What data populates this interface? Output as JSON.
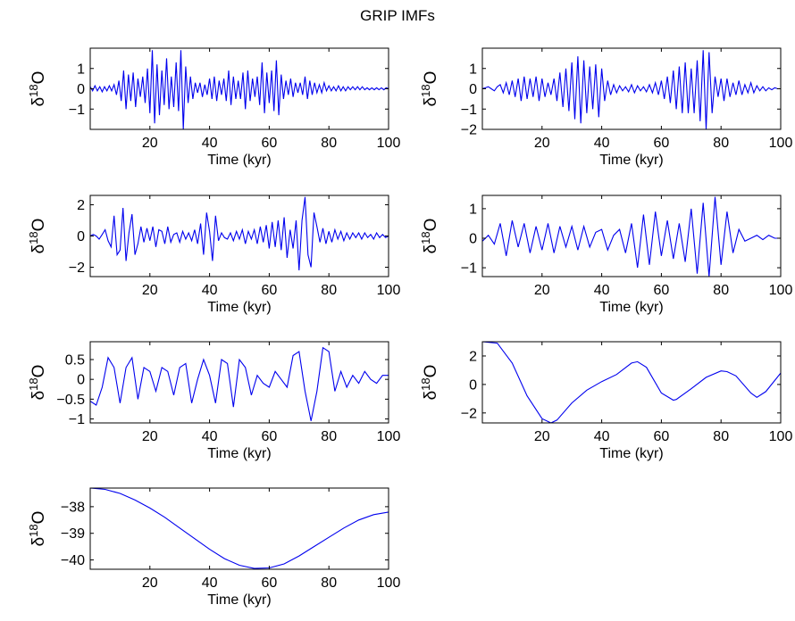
{
  "figure": {
    "title": "GRIP IMFs"
  },
  "style": {
    "line_color": "#0000ee",
    "axes_color": "#000000",
    "background": "#ffffff"
  },
  "chart_data": [
    {
      "type": "line",
      "xlabel": "Time (kyr)",
      "ylabel_base": "δ",
      "ylabel_sup": "18",
      "ylabel_tail": "O",
      "xlim": [
        0,
        100
      ],
      "ylim": [
        -2,
        2
      ],
      "xticks": [
        20,
        40,
        60,
        80,
        100
      ],
      "yticks": [
        -1,
        0,
        1
      ],
      "series": [
        {
          "x": [
            0,
            0.8,
            1.6,
            2.4,
            3.2,
            4,
            4.8,
            5.6,
            6.4,
            7.2,
            8,
            8.8,
            9.6,
            10.4,
            11.2,
            12,
            12.8,
            13.6,
            14.4,
            15.2,
            16,
            16.8,
            17.6,
            18.4,
            19.2,
            20,
            20.8,
            21.6,
            22.4,
            23.2,
            24,
            24.8,
            25.6,
            26.4,
            27.2,
            28,
            28.8,
            29.6,
            30.4,
            31.2,
            32,
            32.8,
            33.6,
            34.4,
            35.2,
            36,
            36.8,
            37.6,
            38.4,
            39.2,
            40,
            40.8,
            41.6,
            42.4,
            43.2,
            44,
            44.8,
            45.6,
            46.4,
            47.2,
            48,
            48.8,
            49.6,
            50.4,
            51.2,
            52,
            52.8,
            53.6,
            54.4,
            55.2,
            56,
            56.8,
            57.6,
            58.4,
            59.2,
            60,
            60.8,
            61.6,
            62.4,
            63.2,
            64,
            64.8,
            65.6,
            66.4,
            67.2,
            68,
            68.8,
            69.6,
            70.4,
            71.2,
            72,
            72.8,
            73.6,
            74.4,
            75.2,
            76,
            76.8,
            77.6,
            78.4,
            79.2,
            80,
            80.8,
            81.6,
            82.4,
            83.2,
            84,
            84.8,
            85.6,
            86.4,
            87.2,
            88,
            88.8,
            89.6,
            90.4,
            91.2,
            92,
            92.8,
            93.6,
            94.4,
            95.2,
            96,
            96.8,
            97.6,
            98.4,
            99.2,
            100
          ],
          "y": [
            0.1,
            -0.1,
            0.15,
            -0.1,
            0.1,
            -0.15,
            0.1,
            -0.1,
            0.15,
            -0.1,
            0.2,
            -0.3,
            0.4,
            -0.6,
            0.9,
            -1.0,
            0.7,
            -0.6,
            0.8,
            -0.9,
            0.5,
            -0.4,
            0.6,
            -0.7,
            1.0,
            -1.2,
            1.9,
            -1.7,
            1.2,
            -1.3,
            0.9,
            -0.8,
            1.5,
            -1.0,
            0.6,
            -0.9,
            1.3,
            -1.1,
            1.9,
            -2.0,
            1.1,
            -0.7,
            0.6,
            -0.5,
            0.3,
            -0.2,
            0.3,
            -0.4,
            0.2,
            -0.3,
            0.5,
            -0.5,
            0.6,
            -0.6,
            0.4,
            -0.3,
            0.5,
            -0.6,
            0.9,
            -0.8,
            0.6,
            -0.5,
            0.4,
            -0.5,
            0.8,
            -1.0,
            0.9,
            -0.6,
            0.5,
            -0.4,
            0.6,
            -0.8,
            1.3,
            -1.2,
            0.8,
            -0.7,
            0.9,
            -1.1,
            1.4,
            -1.3,
            0.7,
            -0.5,
            0.4,
            -0.3,
            0.5,
            -0.4,
            0.3,
            -0.2,
            0.3,
            -0.3,
            0.6,
            -0.5,
            0.4,
            -0.3,
            0.3,
            -0.2,
            0.2,
            -0.2,
            0.3,
            -0.1,
            0.15,
            -0.1,
            0.1,
            -0.1,
            0.15,
            -0.1,
            0.1,
            -0.1,
            0.1,
            -0.05,
            0.1,
            -0.05,
            0.1,
            -0.05,
            0.1,
            -0.05,
            0.05,
            -0.05,
            0.05,
            -0.05,
            0.05,
            -0.05,
            0.05,
            -0.05,
            0.05,
            0.0
          ]
        }
      ]
    },
    {
      "type": "line",
      "xlabel": "Time (kyr)",
      "ylabel_base": "δ",
      "ylabel_sup": "18",
      "ylabel_tail": "O",
      "xlim": [
        0,
        100
      ],
      "ylim": [
        -2,
        2
      ],
      "xticks": [
        20,
        40,
        60,
        80,
        100
      ],
      "yticks": [
        -2,
        -1,
        0,
        1
      ],
      "series": [
        {
          "x": [
            0,
            1,
            2,
            3,
            4,
            5,
            6,
            7,
            8,
            9,
            10,
            11,
            12,
            13,
            14,
            15,
            16,
            17,
            18,
            19,
            20,
            21,
            22,
            23,
            24,
            25,
            26,
            27,
            28,
            29,
            30,
            31,
            32,
            33,
            34,
            35,
            36,
            37,
            38,
            39,
            40,
            41,
            42,
            43,
            44,
            45,
            46,
            47,
            48,
            49,
            50,
            51,
            52,
            53,
            54,
            55,
            56,
            57,
            58,
            59,
            60,
            61,
            62,
            63,
            64,
            65,
            66,
            67,
            68,
            69,
            70,
            71,
            72,
            73,
            74,
            75,
            76,
            77,
            78,
            79,
            80,
            81,
            82,
            83,
            84,
            85,
            86,
            87,
            88,
            89,
            90,
            91,
            92,
            93,
            94,
            95,
            96,
            97,
            98,
            99,
            100
          ],
          "y": [
            0.0,
            0.05,
            0.1,
            0.0,
            -0.1,
            0.1,
            0.2,
            -0.2,
            0.3,
            -0.3,
            0.4,
            -0.4,
            0.5,
            -0.6,
            0.6,
            -0.5,
            0.5,
            -0.4,
            0.6,
            -0.6,
            0.5,
            -0.4,
            0.3,
            -0.3,
            0.5,
            -0.6,
            0.8,
            -0.9,
            1.0,
            -1.1,
            1.3,
            -1.5,
            1.6,
            -1.7,
            1.4,
            -1.2,
            1.1,
            -1.0,
            1.2,
            -1.4,
            1.0,
            -0.6,
            0.4,
            -0.3,
            0.2,
            -0.2,
            0.15,
            -0.1,
            0.1,
            -0.15,
            0.2,
            -0.2,
            0.15,
            -0.1,
            0.1,
            -0.15,
            0.2,
            -0.2,
            0.3,
            -0.3,
            0.4,
            -0.5,
            0.6,
            -0.7,
            0.9,
            -1.0,
            1.1,
            -1.2,
            1.3,
            -1.2,
            1.0,
            -1.2,
            1.4,
            -1.6,
            1.9,
            -2.0,
            1.8,
            -1.2,
            0.6,
            -0.4,
            0.5,
            -0.6,
            0.5,
            -0.4,
            0.3,
            -0.3,
            0.4,
            -0.3,
            0.2,
            -0.2,
            0.3,
            -0.2,
            0.15,
            -0.1,
            0.1,
            -0.1,
            0.05,
            -0.05,
            0.05,
            0.0,
            0.0
          ]
        }
      ]
    },
    {
      "type": "line",
      "xlabel": "Time (kyr)",
      "ylabel_base": "δ",
      "ylabel_sup": "18",
      "ylabel_tail": "O",
      "xlim": [
        0,
        100
      ],
      "ylim": [
        -2.6,
        2.6
      ],
      "xticks": [
        20,
        40,
        60,
        80,
        100
      ],
      "yticks": [
        -2,
        0,
        2
      ],
      "series": [
        {
          "x": [
            0,
            1,
            2,
            3,
            4,
            5,
            6,
            7,
            8,
            9,
            10,
            11,
            12,
            13,
            14,
            15,
            16,
            17,
            18,
            19,
            20,
            21,
            22,
            23,
            24,
            25,
            26,
            27,
            28,
            29,
            30,
            31,
            32,
            33,
            34,
            35,
            36,
            37,
            38,
            39,
            40,
            41,
            42,
            43,
            44,
            45,
            46,
            47,
            48,
            49,
            50,
            51,
            52,
            53,
            54,
            55,
            56,
            57,
            58,
            59,
            60,
            61,
            62,
            63,
            64,
            65,
            66,
            67,
            68,
            69,
            70,
            71,
            72,
            73,
            74,
            75,
            76,
            77,
            78,
            79,
            80,
            81,
            82,
            83,
            84,
            85,
            86,
            87,
            88,
            89,
            90,
            91,
            92,
            93,
            94,
            95,
            96,
            97,
            98,
            99,
            100
          ],
          "y": [
            0.0,
            0.1,
            0.0,
            -0.2,
            0.1,
            0.4,
            -0.3,
            -0.7,
            1.3,
            -1.2,
            -0.9,
            1.8,
            -1.6,
            0.2,
            1.4,
            -1.2,
            -0.5,
            0.6,
            -0.4,
            0.5,
            -0.3,
            0.6,
            -0.7,
            0.4,
            0.3,
            -0.5,
            0.6,
            -0.4,
            0.1,
            0.2,
            -0.4,
            0.3,
            -0.2,
            0.2,
            -0.3,
            0.4,
            -0.5,
            0.8,
            -1.2,
            1.5,
            0.3,
            -1.6,
            1.3,
            -0.3,
            0.2,
            -0.1,
            -0.2,
            0.2,
            -0.3,
            0.3,
            -0.2,
            0.4,
            -0.5,
            0.3,
            -0.2,
            0.4,
            -0.5,
            0.6,
            -0.4,
            0.7,
            -0.8,
            0.9,
            -0.7,
            1.0,
            -0.9,
            1.2,
            -1.4,
            0.4,
            -0.8,
            1.0,
            -2.2,
            1.0,
            2.5,
            -1.2,
            -2.0,
            1.5,
            0.6,
            -0.4,
            0.5,
            -0.5,
            0.3,
            -0.4,
            0.4,
            -0.2,
            0.3,
            -0.3,
            0.2,
            -0.2,
            0.2,
            -0.1,
            0.2,
            -0.2,
            0.2,
            -0.1,
            0.1,
            -0.2,
            0.2,
            -0.1,
            0.1,
            -0.1,
            0.0
          ]
        }
      ]
    },
    {
      "type": "line",
      "xlabel": "Time (kyr)",
      "ylabel_base": "δ",
      "ylabel_sup": "18",
      "ylabel_tail": "O",
      "xlim": [
        0,
        100
      ],
      "ylim": [
        -1.3,
        1.45
      ],
      "xticks": [
        20,
        40,
        60,
        80,
        100
      ],
      "yticks": [
        -1,
        0,
        1
      ],
      "series": [
        {
          "x": [
            0,
            2,
            4,
            6,
            8,
            10,
            12,
            14,
            16,
            18,
            20,
            22,
            24,
            26,
            28,
            30,
            32,
            34,
            36,
            38,
            40,
            42,
            44,
            46,
            48,
            50,
            52,
            54,
            56,
            58,
            60,
            62,
            64,
            66,
            68,
            70,
            72,
            74,
            76,
            78,
            80,
            82,
            84,
            86,
            88,
            90,
            92,
            94,
            96,
            98,
            100
          ],
          "y": [
            -0.1,
            0.1,
            -0.2,
            0.5,
            -0.6,
            0.6,
            -0.3,
            0.5,
            -0.5,
            0.4,
            -0.4,
            0.5,
            -0.5,
            0.4,
            -0.3,
            0.4,
            -0.4,
            0.4,
            -0.3,
            0.2,
            0.3,
            -0.4,
            0.1,
            0.3,
            -0.5,
            0.5,
            -1.0,
            0.8,
            -0.9,
            0.9,
            -0.6,
            0.6,
            -0.7,
            0.5,
            -0.8,
            1.0,
            -1.2,
            1.2,
            -1.3,
            1.4,
            -0.9,
            0.9,
            -0.5,
            0.3,
            -0.1,
            0.0,
            0.1,
            -0.05,
            0.1,
            0.0,
            0.0
          ]
        }
      ]
    },
    {
      "type": "line",
      "xlabel": "Time (kyr)",
      "ylabel_base": "δ",
      "ylabel_sup": "18",
      "ylabel_tail": "O",
      "xlim": [
        0,
        100
      ],
      "ylim": [
        -1.1,
        0.95
      ],
      "xticks": [
        20,
        40,
        60,
        80,
        100
      ],
      "yticks": [
        -1,
        -0.5,
        0,
        0.5
      ],
      "series": [
        {
          "x": [
            0,
            2,
            4,
            6,
            8,
            10,
            12,
            14,
            16,
            18,
            20,
            22,
            24,
            26,
            28,
            30,
            32,
            34,
            36,
            38,
            40,
            42,
            44,
            46,
            48,
            50,
            52,
            54,
            56,
            58,
            60,
            62,
            64,
            66,
            68,
            70,
            72,
            74,
            76,
            78,
            80,
            82,
            84,
            86,
            88,
            90,
            92,
            94,
            96,
            98,
            100
          ],
          "y": [
            -0.55,
            -0.65,
            -0.2,
            0.55,
            0.3,
            -0.6,
            0.3,
            0.55,
            -0.5,
            0.3,
            0.2,
            -0.3,
            0.3,
            0.2,
            -0.4,
            0.3,
            0.4,
            -0.6,
            0.0,
            0.5,
            0.1,
            -0.6,
            0.5,
            0.4,
            -0.7,
            0.5,
            0.3,
            -0.4,
            0.1,
            -0.1,
            -0.2,
            0.2,
            0.0,
            -0.2,
            0.6,
            0.7,
            -0.3,
            -1.05,
            -0.3,
            0.8,
            0.7,
            -0.3,
            0.2,
            -0.2,
            0.1,
            -0.1,
            0.2,
            0.0,
            -0.1,
            0.1,
            0.1
          ]
        }
      ]
    },
    {
      "type": "line",
      "xlabel": "Time (kyr)",
      "ylabel_base": "δ",
      "ylabel_sup": "18",
      "ylabel_tail": "O",
      "xlim": [
        0,
        100
      ],
      "ylim": [
        -2.7,
        3.0
      ],
      "xticks": [
        20,
        40,
        60,
        80,
        100
      ],
      "yticks": [
        -2,
        0,
        2
      ],
      "series": [
        {
          "x": [
            0,
            5,
            10,
            15,
            20,
            23,
            25,
            30,
            35,
            40,
            45,
            50,
            52,
            55,
            60,
            64,
            65,
            70,
            75,
            80,
            82,
            85,
            90,
            92,
            95,
            100
          ],
          "y": [
            3.0,
            2.9,
            1.5,
            -0.8,
            -2.4,
            -2.7,
            -2.5,
            -1.3,
            -0.4,
            0.2,
            0.7,
            1.5,
            1.6,
            1.2,
            -0.6,
            -1.1,
            -1.05,
            -0.3,
            0.5,
            0.95,
            0.9,
            0.6,
            -0.6,
            -0.9,
            -0.5,
            0.8
          ]
        }
      ]
    },
    {
      "type": "line",
      "xlabel": "Time (kyr)",
      "ylabel_base": "δ",
      "ylabel_sup": "18",
      "ylabel_tail": "O",
      "xlim": [
        0,
        100
      ],
      "ylim": [
        -40.35,
        -37.3
      ],
      "xticks": [
        20,
        40,
        60,
        80,
        100
      ],
      "yticks": [
        -40,
        -39,
        -38
      ],
      "series": [
        {
          "x": [
            0,
            5,
            10,
            15,
            20,
            25,
            30,
            35,
            40,
            45,
            50,
            55,
            60,
            65,
            70,
            75,
            80,
            85,
            90,
            95,
            100
          ],
          "y": [
            -37.3,
            -37.35,
            -37.5,
            -37.75,
            -38.05,
            -38.4,
            -38.8,
            -39.2,
            -39.6,
            -39.95,
            -40.2,
            -40.32,
            -40.3,
            -40.15,
            -39.85,
            -39.5,
            -39.15,
            -38.8,
            -38.5,
            -38.3,
            -38.2
          ]
        }
      ]
    }
  ]
}
